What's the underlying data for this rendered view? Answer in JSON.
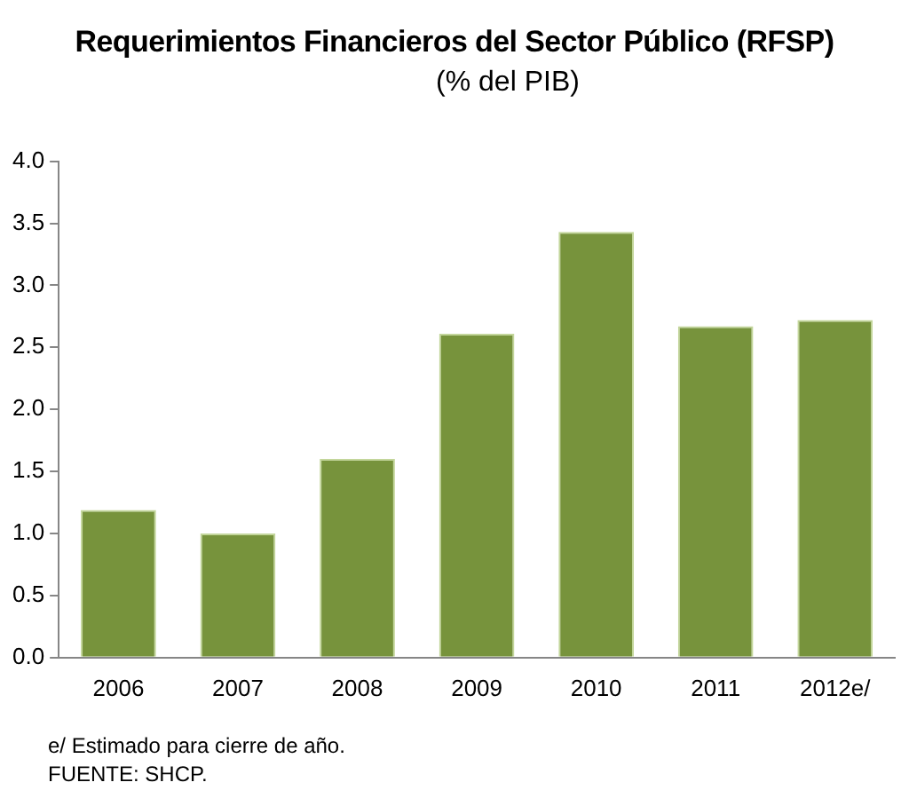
{
  "chart_data": {
    "type": "bar",
    "title": "Requerimientos Financieros del Sector Público (RFSP)",
    "subtitle": "(% del PIB)",
    "categories": [
      "2006",
      "2007",
      "2008",
      "2009",
      "2010",
      "2011",
      "2012e/"
    ],
    "values": [
      1.19,
      1.0,
      1.6,
      2.61,
      3.43,
      2.67,
      2.72
    ],
    "color": "#77933c",
    "ylim": [
      0,
      4
    ],
    "yticks": [
      {
        "value": 0,
        "label": "0.0"
      },
      {
        "value": 0.5,
        "label": "0.5"
      },
      {
        "value": 1,
        "label": "1.0"
      },
      {
        "value": 1.5,
        "label": "1.5"
      },
      {
        "value": 2,
        "label": "2.0"
      },
      {
        "value": 2.5,
        "label": "2.5"
      },
      {
        "value": 3,
        "label": "3.0"
      },
      {
        "value": 3.5,
        "label": "3.5"
      },
      {
        "value": 4,
        "label": "4.0"
      }
    ],
    "grid": false,
    "annotations": [
      "e/ Estimado para cierre de año.",
      "FUENTE: SHCP."
    ]
  }
}
